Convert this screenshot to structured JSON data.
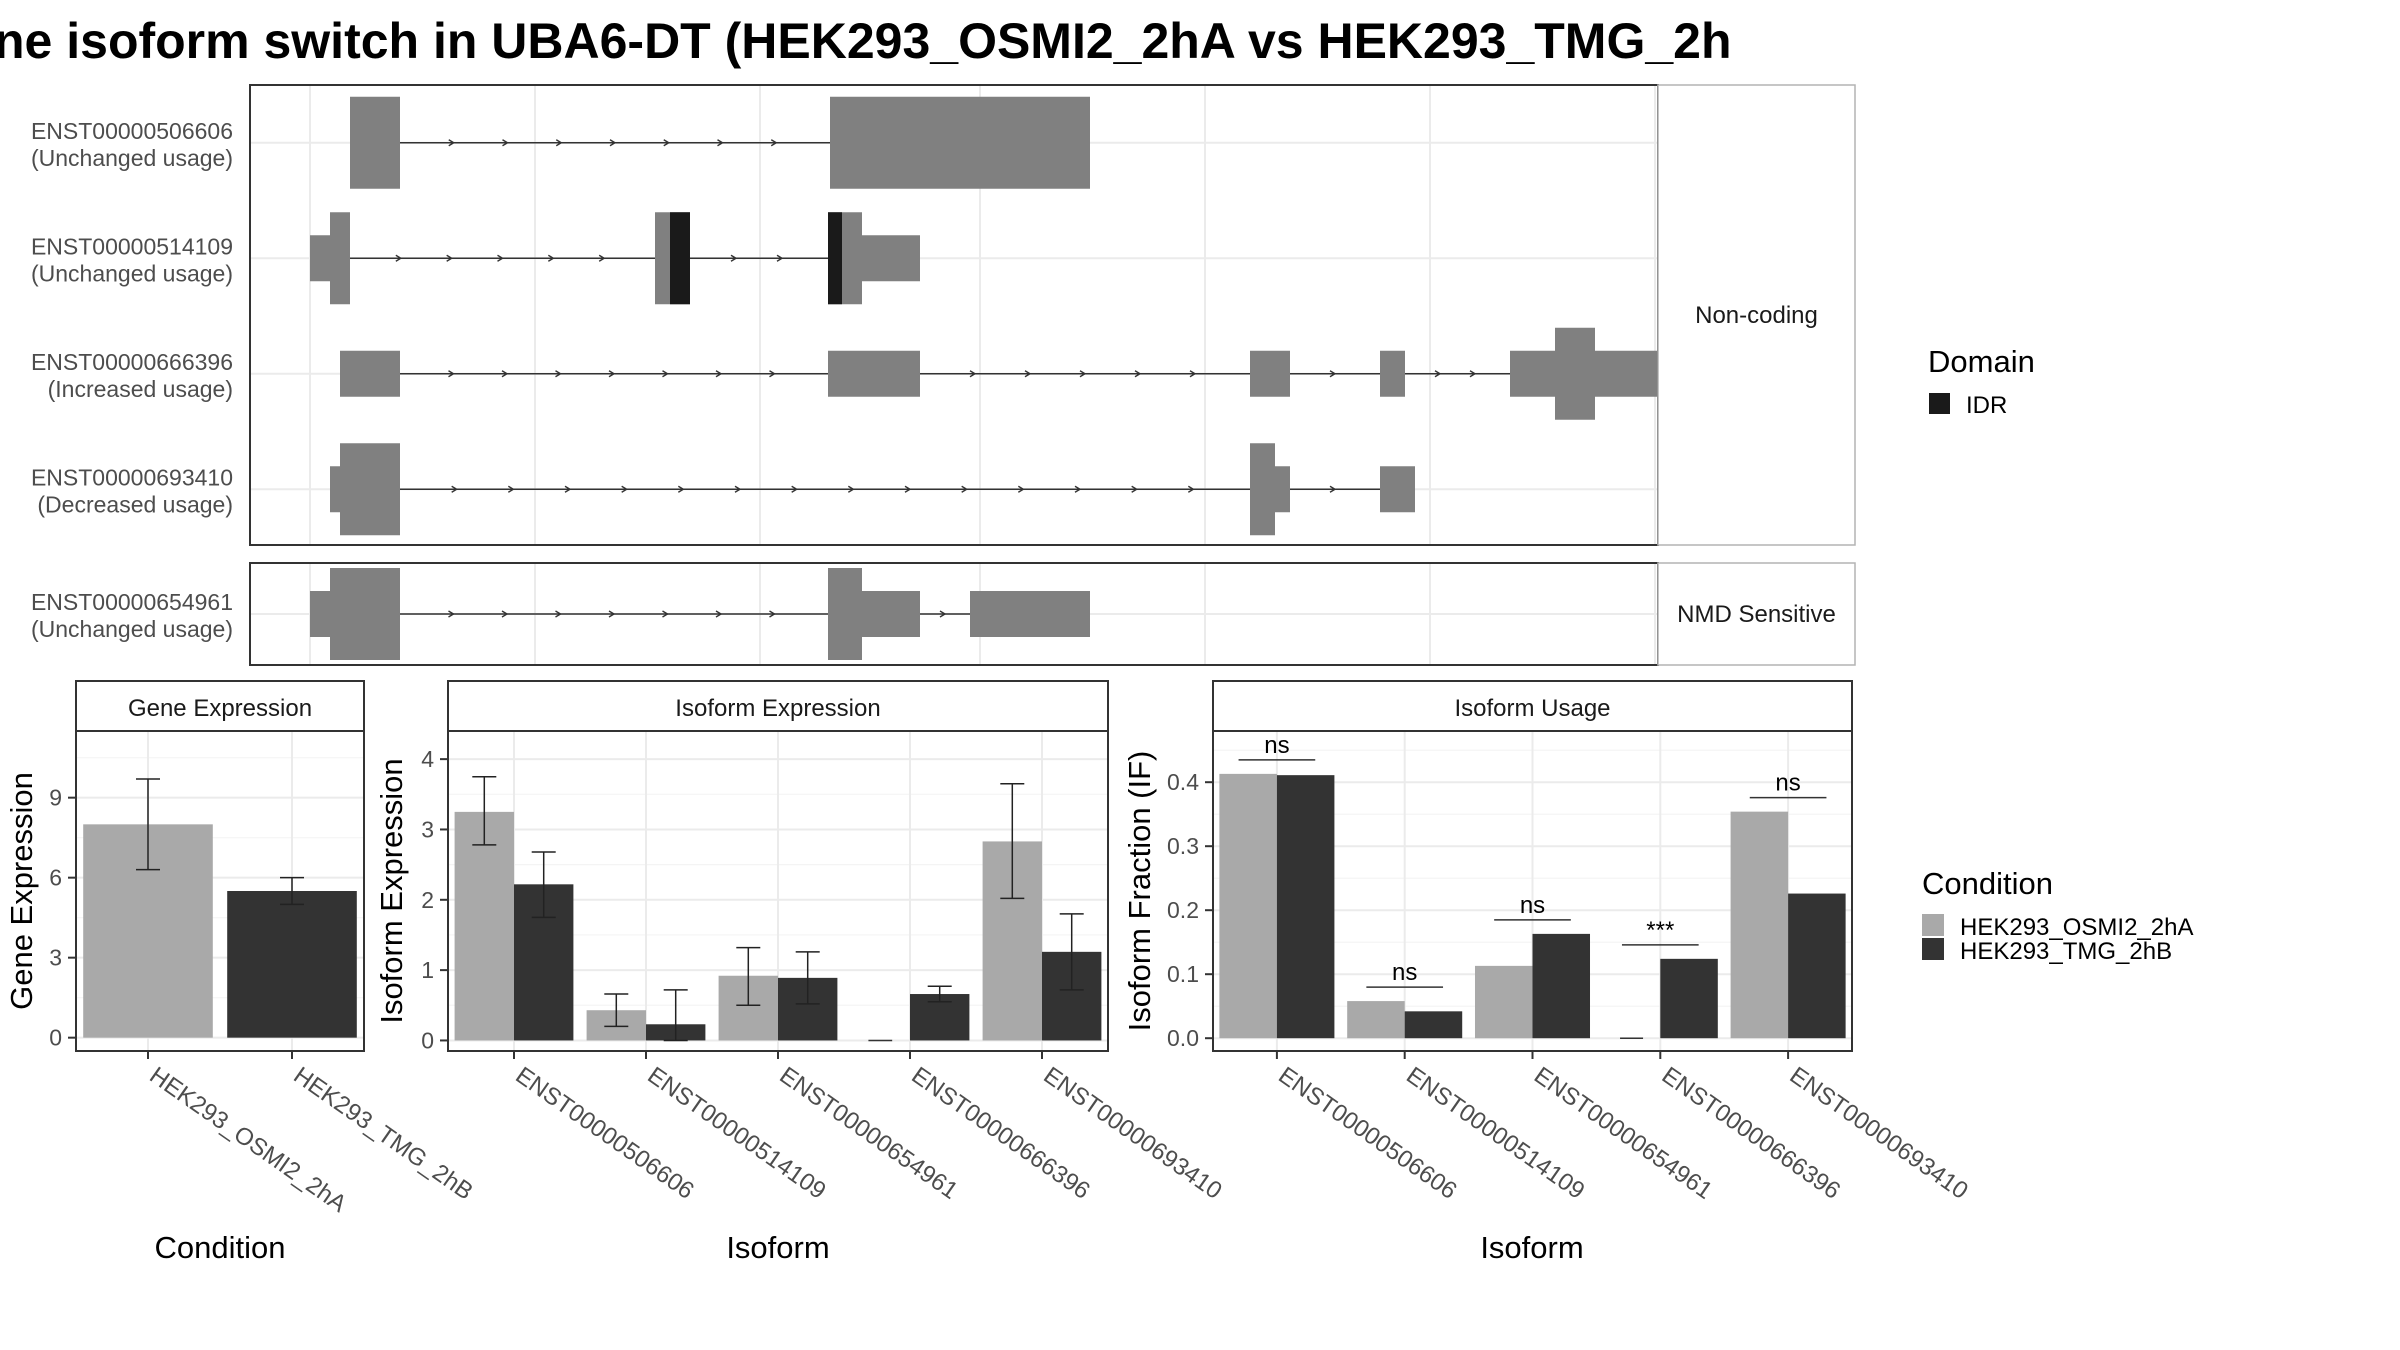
{
  "title": "ne isoform switch in UBA6-DT (HEK293_OSMI2_2hA vs HEK293_TMG_2h",
  "colors": {
    "cond_a": "#a9a9a9",
    "cond_b": "#333333",
    "exon": "#808080",
    "idr": "#1a1a1a"
  },
  "structure": {
    "panels": [
      {
        "strip": "Non-coding",
        "tracks": [
          {
            "id": "ENST00000506606",
            "status": "(Unchanged usage)",
            "exons": [
              [
                100,
                150
              ],
              [
                580,
                840
              ]
            ],
            "exon_heights": [
              "full",
              "full"
            ],
            "idr": []
          },
          {
            "id": "ENST00000514109",
            "status": "(Unchanged usage)",
            "exons": [
              [
                60,
                80
              ],
              [
                80,
                100
              ],
              [
                405,
                420
              ],
              [
                420,
                440
              ],
              [
                578,
                592
              ],
              [
                592,
                612
              ],
              [
                612,
                670
              ]
            ],
            "exon_heights": [
              "half",
              "full",
              "full",
              "full",
              "full",
              "full",
              "half"
            ],
            "idr": [
              [
                420,
                440
              ],
              [
                578,
                592
              ]
            ]
          },
          {
            "id": "ENST00000666396",
            "status": "(Increased usage)",
            "exons": [
              [
                90,
                150
              ],
              [
                578,
                670
              ],
              [
                1000,
                1040
              ],
              [
                1130,
                1155
              ],
              [
                1260,
                1305
              ],
              [
                1305,
                1345
              ],
              [
                1345,
                1410
              ]
            ],
            "exon_heights": [
              "half",
              "half",
              "half",
              "half",
              "half",
              "full",
              "half"
            ],
            "idr": []
          },
          {
            "id": "ENST00000693410",
            "status": "(Decreased usage)",
            "exons": [
              [
                80,
                90
              ],
              [
                90,
                150
              ],
              [
                1000,
                1025
              ],
              [
                1025,
                1040
              ],
              [
                1130,
                1165
              ]
            ],
            "exon_heights": [
              "half",
              "full",
              "full",
              "half",
              "half"
            ],
            "idr": []
          }
        ]
      },
      {
        "strip": "NMD Sensitive",
        "tracks": [
          {
            "id": "ENST00000654961",
            "status": "(Unchanged usage)",
            "exons": [
              [
                60,
                80
              ],
              [
                80,
                150
              ],
              [
                578,
                612
              ],
              [
                612,
                670
              ],
              [
                720,
                840
              ]
            ],
            "exon_heights": [
              "half",
              "full",
              "full",
              "half",
              "half"
            ],
            "idr": []
          }
        ]
      }
    ]
  },
  "legend_domain": {
    "title": "Domain",
    "items": [
      {
        "label": "IDR",
        "color": "#1a1a1a"
      }
    ]
  },
  "legend_condition": {
    "title": "Condition",
    "items": [
      {
        "label": "HEK293_OSMI2_2hA",
        "color": "#a9a9a9"
      },
      {
        "label": "HEK293_TMG_2hB",
        "color": "#333333"
      }
    ]
  },
  "chart_data": [
    {
      "type": "bar",
      "title": "Gene Expression",
      "xlabel": "Condition",
      "ylabel": "Gene Expression",
      "categories": [
        "HEK293_OSMI2_2hA",
        "HEK293_TMG_2hB"
      ],
      "values": [
        8.0,
        5.5
      ],
      "errors": [
        [
          6.3,
          9.7
        ],
        [
          5.0,
          6.0
        ]
      ],
      "ylim": [
        -0.5,
        11.5
      ],
      "yticks": [
        0,
        3,
        6,
        9
      ],
      "grid": true
    },
    {
      "type": "bar",
      "title": "Isoform Expression",
      "xlabel": "Isoform",
      "ylabel": "Isoform Expression",
      "categories": [
        "ENST00000506606",
        "ENST00000514109",
        "ENST00000654961",
        "ENST00000666396",
        "ENST00000693410"
      ],
      "series": [
        {
          "name": "HEK293_OSMI2_2hA",
          "values": [
            3.25,
            0.43,
            0.92,
            0.0,
            2.83
          ],
          "errors": [
            [
              2.78,
              3.75
            ],
            [
              0.2,
              0.66
            ],
            [
              0.5,
              1.32
            ],
            [
              0.0,
              0.0
            ],
            [
              2.02,
              3.65
            ]
          ]
        },
        {
          "name": "HEK293_TMG_2hB",
          "values": [
            2.22,
            0.23,
            0.89,
            0.66,
            1.26
          ],
          "errors": [
            [
              1.75,
              2.68
            ],
            [
              0.0,
              0.72
            ],
            [
              0.52,
              1.26
            ],
            [
              0.55,
              0.77
            ],
            [
              0.72,
              1.8
            ]
          ]
        }
      ],
      "ylim": [
        -0.15,
        4.4
      ],
      "yticks": [
        0,
        1,
        2,
        3,
        4
      ],
      "grid": true
    },
    {
      "type": "bar",
      "title": "Isoform Usage",
      "xlabel": "Isoform",
      "ylabel": "Isoform Fraction (IF)",
      "categories": [
        "ENST00000506606",
        "ENST00000514109",
        "ENST00000654961",
        "ENST00000666396",
        "ENST00000693410"
      ],
      "series": [
        {
          "name": "HEK293_OSMI2_2hA",
          "values": [
            0.413,
            0.058,
            0.113,
            0.0,
            0.354
          ]
        },
        {
          "name": "HEK293_TMG_2hB",
          "values": [
            0.411,
            0.042,
            0.163,
            0.124,
            0.226
          ]
        }
      ],
      "significance": [
        "ns",
        "ns",
        "ns",
        "***",
        "ns"
      ],
      "ylim": [
        -0.02,
        0.48
      ],
      "yticks": [
        "0.0",
        "0.1",
        "0.2",
        "0.3",
        "0.4"
      ],
      "grid": true
    }
  ]
}
